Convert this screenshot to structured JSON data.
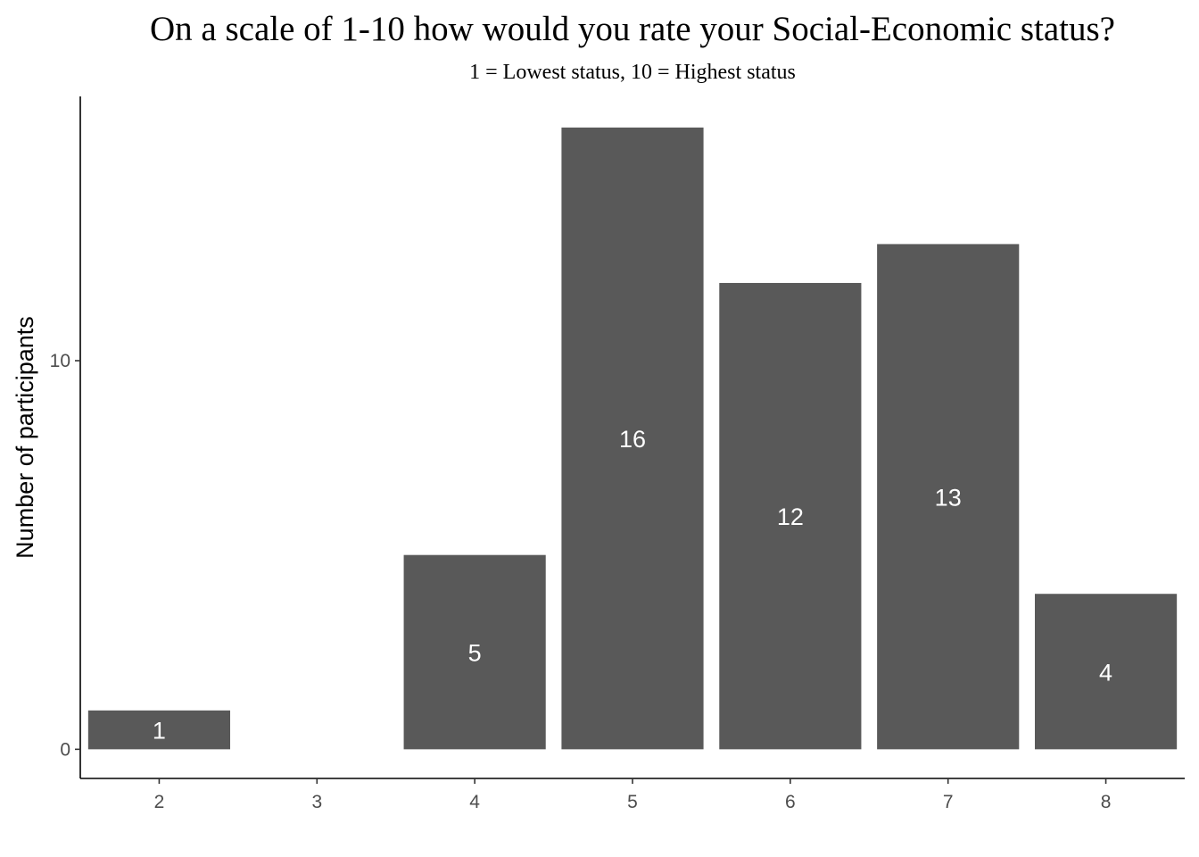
{
  "chart_data": {
    "type": "bar",
    "title": "On a scale of 1-10 how would you rate your Social-Economic status?",
    "subtitle": "1 = Lowest status, 10 = Highest status",
    "xlabel": "",
    "ylabel": "Number of participants",
    "x_ticks": [
      "2",
      "3",
      "4",
      "5",
      "6",
      "7",
      "8"
    ],
    "y_ticks": [
      0,
      10
    ],
    "categories": [
      "2",
      "4",
      "5",
      "6",
      "7",
      "8"
    ],
    "values": [
      1,
      5,
      16,
      12,
      13,
      4
    ],
    "data_labels": [
      "1",
      "5",
      "16",
      "12",
      "13",
      "4"
    ],
    "ylim": [
      -0.75,
      16.8
    ],
    "bar_color": "#595959",
    "label_color": "#ffffff",
    "grid": false,
    "legend": "none"
  }
}
